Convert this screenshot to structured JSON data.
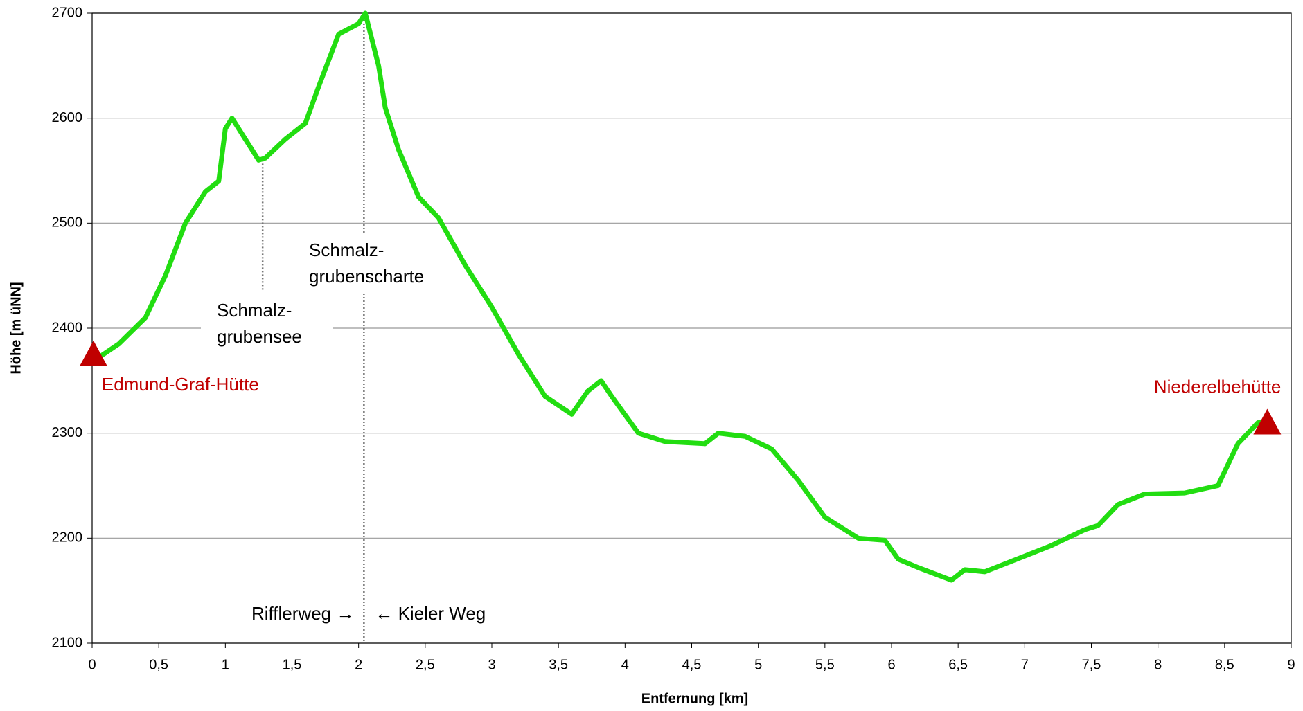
{
  "chart_data": {
    "type": "line",
    "xlabel": "Entfernung [km]",
    "ylabel": "Höhe [m üNN]",
    "x": [
      0.06,
      0.2,
      0.4,
      0.55,
      0.7,
      0.85,
      0.95,
      1.0,
      1.05,
      1.15,
      1.25,
      1.3,
      1.45,
      1.6,
      1.7,
      1.85,
      2.0,
      2.05,
      2.15,
      2.2,
      2.3,
      2.45,
      2.6,
      2.8,
      3.0,
      3.2,
      3.4,
      3.6,
      3.72,
      3.82,
      3.9,
      4.1,
      4.3,
      4.6,
      4.7,
      4.9,
      5.1,
      5.3,
      5.5,
      5.75,
      5.95,
      6.05,
      6.2,
      6.45,
      6.55,
      6.7,
      6.9,
      7.2,
      7.45,
      7.55,
      7.7,
      7.9,
      8.2,
      8.45,
      8.6,
      8.75,
      8.82
    ],
    "series": [
      {
        "color": "#22dd11",
        "values": [
          2373,
          2385,
          2410,
          2450,
          2500,
          2530,
          2540,
          2590,
          2600,
          2580,
          2560,
          2562,
          2580,
          2595,
          2630,
          2680,
          2690,
          2700,
          2650,
          2610,
          2570,
          2525,
          2505,
          2460,
          2420,
          2375,
          2335,
          2318,
          2340,
          2350,
          2335,
          2300,
          2292,
          2290,
          2300,
          2297,
          2285,
          2255,
          2220,
          2200,
          2198,
          2180,
          2172,
          2160,
          2170,
          2168,
          2178,
          2193,
          2208,
          2212,
          2232,
          2242,
          2243,
          2250,
          2290,
          2310,
          2312
        ]
      }
    ],
    "markers": [
      {
        "label": "Edmund-Graf-Hütte",
        "x": 0.01,
        "y": 2375,
        "color": "#c00000"
      },
      {
        "label": "Niederelbehütte",
        "x": 8.82,
        "y": 2310,
        "color": "#c00000"
      }
    ],
    "annotations": [
      {
        "lines": [
          "Schmalz-",
          "grubensee"
        ],
        "x": 1.28,
        "y": 2560
      },
      {
        "lines": [
          "Schmalz-",
          "grubenscharte"
        ],
        "x": 2.04,
        "y": 2700
      }
    ],
    "route_labels": {
      "left": "Rifflerweg →",
      "right": "← Kieler Weg"
    },
    "xlim": [
      0,
      9
    ],
    "xticks": [
      0,
      {
        "value": 0.5,
        "label": "0,5"
      },
      1,
      {
        "value": 1.5,
        "label": "1,5"
      },
      2,
      {
        "value": 2.5,
        "label": "2,5"
      },
      3,
      {
        "value": 3.5,
        "label": "3,5"
      },
      4,
      {
        "value": 4.5,
        "label": "4,5"
      },
      5,
      {
        "value": 5.5,
        "label": "5,5"
      },
      6,
      {
        "value": 6.5,
        "label": "6,5"
      },
      7,
      {
        "value": 7.5,
        "label": "7,5"
      },
      8,
      {
        "value": 8.5,
        "label": "8,5"
      },
      9
    ],
    "ylim": [
      2100,
      2700
    ],
    "yticks": [
      2100,
      2200,
      2300,
      2400,
      2500,
      2600,
      2700
    ],
    "grid": true
  }
}
